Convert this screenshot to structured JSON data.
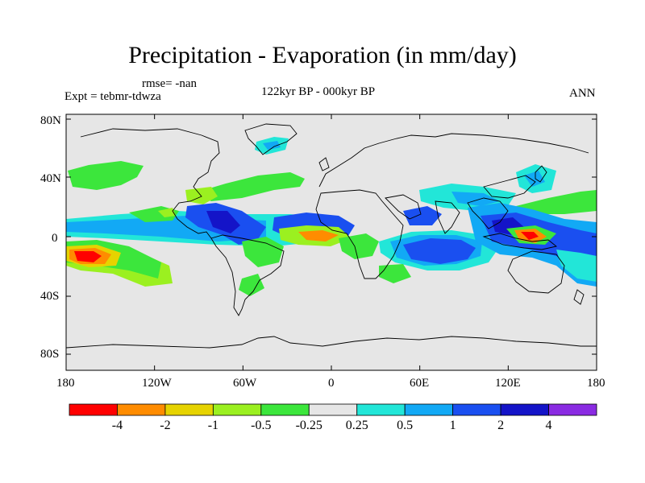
{
  "title": "Precipitation - Evaporation (in mm/day)",
  "rmse_label": "rmse= -nan",
  "experiment_label": "Expt = tebmr-tdwza",
  "period_label": "122kyr BP - 000kyr BP",
  "season_label": "ANN",
  "lat_labels": [
    "80N",
    "40N",
    "0",
    "40S",
    "80S"
  ],
  "lon_labels": [
    "180",
    "120W",
    "60W",
    "0",
    "60E",
    "120E",
    "180"
  ],
  "colorbar": {
    "colors": [
      "#ff0000",
      "#ff8c00",
      "#e6d300",
      "#9bf020",
      "#3ce63c",
      "#e6e6e6",
      "#22e6d8",
      "#12a9f5",
      "#1a4ff0",
      "#1414c8",
      "#8a2be2"
    ],
    "labels": [
      "-4",
      "-2",
      "-1",
      "-0.5",
      "-0.25",
      "0.25",
      "0.5",
      "1",
      "2",
      "4"
    ]
  }
}
